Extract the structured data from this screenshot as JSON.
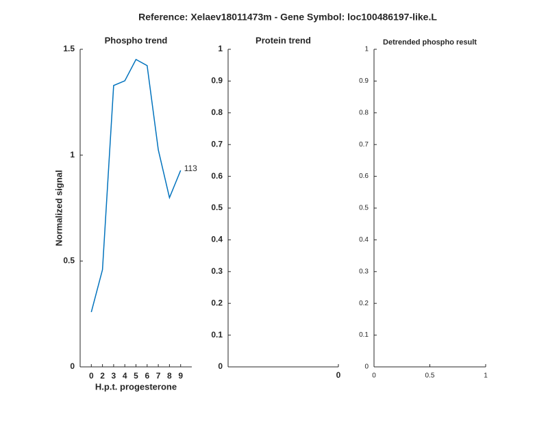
{
  "title": "Reference:  Xelaev18011473m - Gene Symbol:  loc100486197-like.L",
  "chart_data": [
    {
      "type": "line",
      "title": "Phospho trend",
      "xlabel": "H.p.t. progesterone",
      "ylabel": "Normalized signal",
      "categories": [
        "0",
        "2",
        "3",
        "4",
        "5",
        "6",
        "7",
        "8",
        "9"
      ],
      "series": [
        {
          "color": "#0072bd",
          "values": [
            0.259,
            0.459,
            1.329,
            1.351,
            1.452,
            1.423,
            1.025,
            0.799,
            0.928
          ]
        }
      ],
      "annotation": "113",
      "ylim": [
        0,
        1.5
      ],
      "yticks": [
        0,
        0.5,
        1,
        1.5
      ]
    },
    {
      "type": "line",
      "title": "Protein trend",
      "xlim": [
        -1,
        0
      ],
      "xticks": [
        0
      ],
      "ylim": [
        0,
        1
      ],
      "yticks": [
        0,
        0.1,
        0.2,
        0.3,
        0.4,
        0.5,
        0.6,
        0.7,
        0.8,
        0.9,
        1
      ]
    },
    {
      "type": "line",
      "title": "Detrended phospho result",
      "xlim": [
        0,
        1
      ],
      "xticks": [
        0,
        0.5,
        1
      ],
      "ylim": [
        0,
        1
      ],
      "yticks": [
        0,
        0.1,
        0.2,
        0.3,
        0.4,
        0.5,
        0.6,
        0.7,
        0.8,
        0.9,
        1
      ]
    }
  ]
}
